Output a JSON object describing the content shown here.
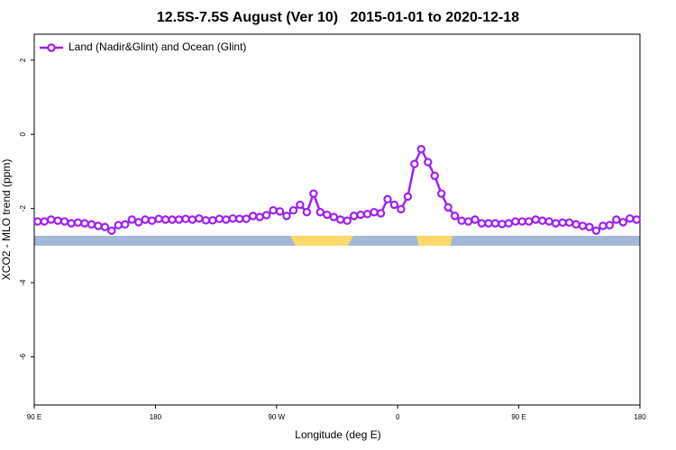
{
  "chart_data": {
    "type": "line",
    "title": "12.5S-7.5S August (Ver 10)   2015-01-01 to 2020-12-18",
    "x_label": "Longitude (deg E)",
    "y_label": "XCO2 - MLO trend (ppm)",
    "xlim": [
      90,
      540
    ],
    "ylim": [
      -7.3,
      2.7
    ],
    "xticks": [
      {
        "value": 90,
        "label": "90 E"
      },
      180,
      {
        "value": 270,
        "label": "90 W"
      },
      {
        "value": 360,
        "label": "0"
      },
      {
        "value": 450,
        "label": "90 E"
      },
      {
        "value": 540,
        "label": "180"
      }
    ],
    "yticks": [
      2,
      0,
      -2,
      -4,
      -6
    ],
    "legend": "top-left",
    "x": [
      92.5,
      97.5,
      102.5,
      107.5,
      112.5,
      117.5,
      122.5,
      127.5,
      132.5,
      137.5,
      142.5,
      147.5,
      152.5,
      157.5,
      162.5,
      167.5,
      172.5,
      177.5,
      182.5,
      187.5,
      192.5,
      197.5,
      202.5,
      207.5,
      212.5,
      217.5,
      222.5,
      227.5,
      232.5,
      237.5,
      242.5,
      247.5,
      252.5,
      257.5,
      262.5,
      267.5,
      272.5,
      277.5,
      282.5,
      287.5,
      292.5,
      297.5,
      302.5,
      307.5,
      312.5,
      317.5,
      322.5,
      327.5,
      332.5,
      337.5,
      342.5,
      347.5,
      352.5,
      357.5,
      362.5,
      367.5,
      372.5,
      377.5,
      382.5,
      387.5,
      392.5,
      397.5,
      402.5,
      407.5,
      412.5,
      417.5,
      422.5,
      427.5,
      432.5,
      437.5,
      442.5,
      447.5,
      452.5,
      457.5,
      462.5,
      467.5,
      472.5,
      477.5,
      482.5,
      487.5,
      492.5,
      497.5,
      502.5,
      507.5,
      512.5,
      517.5,
      522.5,
      527.5,
      532.5,
      537.5
    ],
    "series": [
      {
        "name": "Land (Nadir&Glint) and Ocean (Glint)",
        "color": "#a020f0",
        "values": [
          -2.35,
          -2.35,
          -2.3,
          -2.33,
          -2.35,
          -2.4,
          -2.38,
          -2.4,
          -2.43,
          -2.47,
          -2.5,
          -2.6,
          -2.45,
          -2.43,
          -2.3,
          -2.37,
          -2.3,
          -2.33,
          -2.28,
          -2.3,
          -2.3,
          -2.3,
          -2.28,
          -2.3,
          -2.27,
          -2.32,
          -2.32,
          -2.28,
          -2.3,
          -2.27,
          -2.28,
          -2.28,
          -2.2,
          -2.23,
          -2.18,
          -2.05,
          -2.08,
          -2.2,
          -2.05,
          -1.9,
          -2.1,
          -1.6,
          -2.1,
          -2.17,
          -2.23,
          -2.3,
          -2.33,
          -2.2,
          -2.17,
          -2.15,
          -2.1,
          -2.13,
          -1.75,
          -1.9,
          -2.02,
          -1.68,
          -0.8,
          -0.4,
          -0.75,
          -1.12,
          -1.6,
          -1.97,
          -2.2,
          -2.33,
          -2.35,
          -2.3,
          -2.4,
          -2.4,
          -2.4,
          -2.42,
          -2.4,
          -2.35,
          -2.35,
          -2.35,
          -2.3,
          -2.33,
          -2.35,
          -2.4,
          -2.38,
          -2.38,
          -2.43,
          -2.47,
          -2.5,
          -2.6,
          -2.47,
          -2.45,
          -2.3,
          -2.37,
          -2.27,
          -2.3
        ]
      }
    ]
  }
}
